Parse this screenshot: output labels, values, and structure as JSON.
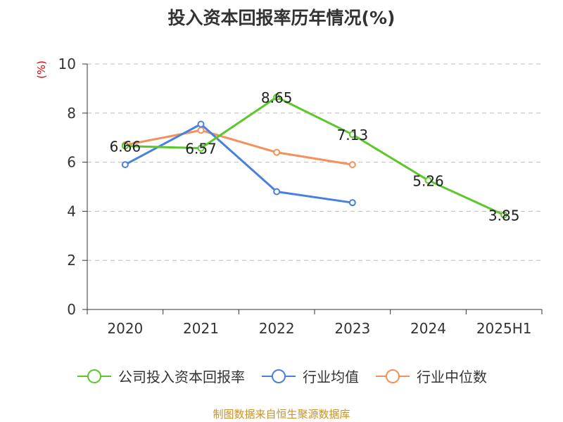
{
  "title": "投入资本回报率历年情况(%)",
  "source": "制图数据来自恒生聚源数据库",
  "chart_data": {
    "type": "line",
    "title": "投入资本回报率历年情况(%)",
    "ylabel": "(%)",
    "categories": [
      "2020",
      "2021",
      "2022",
      "2023",
      "2024",
      "2025H1"
    ],
    "ylim": [
      0,
      10
    ],
    "yticks": [
      0,
      2,
      4,
      6,
      8,
      10
    ],
    "grid": true,
    "legend": "bottom",
    "series": [
      {
        "name": "公司投入资本回报率",
        "color": "#5bc72a",
        "values": [
          6.66,
          6.57,
          8.65,
          7.13,
          5.26,
          3.85
        ],
        "labels": [
          "6.66",
          "6.57",
          "8.65",
          "7.13",
          "5.26",
          "3.85"
        ]
      },
      {
        "name": "行业均值",
        "color": "#4a80dd",
        "values": [
          5.9,
          7.55,
          4.8,
          4.35,
          null,
          null
        ]
      },
      {
        "name": "行业中位数",
        "color": "#f5905a",
        "values": [
          6.7,
          7.3,
          6.4,
          5.9,
          null,
          null
        ]
      }
    ]
  }
}
